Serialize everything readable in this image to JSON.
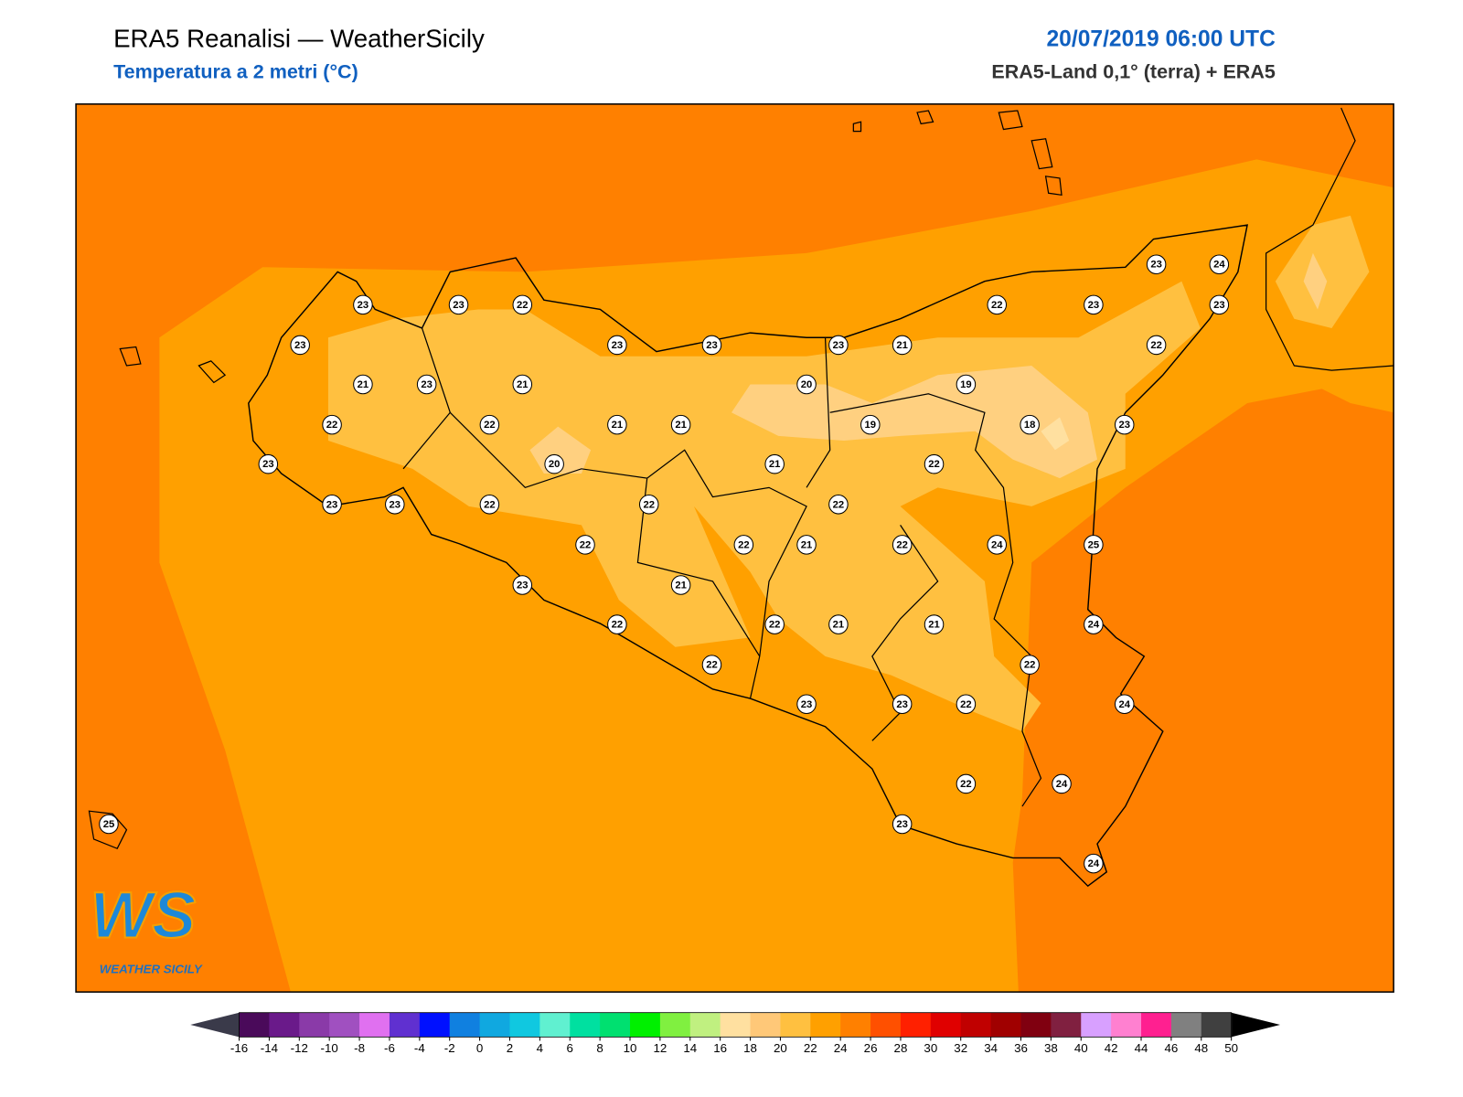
{
  "header": {
    "title": "ERA5 Reanalisi — WeatherSicily",
    "subtitle": "Temperatura a 2 metri (°C)",
    "datetime": "20/07/2019 06:00 UTC",
    "source": "ERA5-Land 0,1° (terra) + ERA5"
  },
  "stations": [
    23,
    23,
    22,
    23,
    21,
    23,
    21,
    22,
    22,
    21,
    21,
    23,
    20,
    23,
    23,
    22,
    22,
    23,
    22,
    22,
    23,
    23,
    20,
    23,
    21,
    19,
    19,
    18,
    22,
    23,
    23,
    24,
    23,
    22,
    23,
    21,
    22,
    22,
    21,
    21,
    22,
    22,
    22,
    24,
    25,
    22,
    21,
    21,
    24,
    22,
    23,
    23,
    22,
    24,
    22,
    24,
    23,
    24,
    25
  ],
  "colorbar": {
    "ticks": [
      -16,
      -14,
      -12,
      -10,
      -8,
      -6,
      -4,
      -2,
      0,
      2,
      4,
      6,
      8,
      10,
      12,
      14,
      16,
      18,
      20,
      22,
      24,
      26,
      28,
      30,
      32,
      34,
      36,
      38,
      40,
      42,
      44,
      46,
      48,
      50
    ],
    "colors": [
      "#4a0a5a",
      "#6a1a8a",
      "#8a3aa8",
      "#a050c0",
      "#e070f0",
      "#6030d0",
      "#0010ff",
      "#1080e0",
      "#10a8e0",
      "#10c8e0",
      "#60f0d0",
      "#00e0a0",
      "#00e070",
      "#00f000",
      "#80f040",
      "#c0f080",
      "#ffe0a0",
      "#ffc878",
      "#ffc040",
      "#ffa000",
      "#ff8000",
      "#ff5000",
      "#ff2000",
      "#e00000",
      "#c00000",
      "#a00000",
      "#800010",
      "#802040",
      "#d8a0ff",
      "#ff80d0",
      "#ff2090",
      "#808080",
      "#404040"
    ],
    "under_color": "#3a3a4a",
    "over_color": "#000000"
  },
  "logo": {
    "mark": "WS",
    "name": "WEATHER SICILY"
  }
}
